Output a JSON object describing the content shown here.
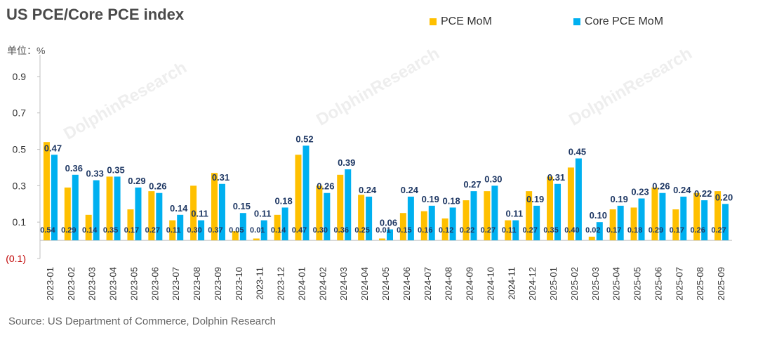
{
  "chart_data": {
    "type": "bar",
    "title": "US PCE/Core PCE index",
    "unit_label": "单位：%",
    "source": "Source: US Department of Commerce, Dolphin Research",
    "watermark": "DolphinResearch",
    "categories": [
      "2023-01",
      "2023-02",
      "2023-03",
      "2023-04",
      "2023-05",
      "2023-06",
      "2023-07",
      "2023-08",
      "2023-09",
      "2023-10",
      "2023-11",
      "2023-12",
      "2024-01",
      "2024-02",
      "2024-03",
      "2024-04",
      "2024-05",
      "2024-06",
      "2024-07",
      "2024-08",
      "2024-09",
      "2024-10",
      "2024-11",
      "2024-12",
      "2025-01",
      "2025-02",
      "2025-03",
      "2025-04",
      "2025-05",
      "2025-06",
      "2025-07",
      "2025-08",
      "2025-09"
    ],
    "series": [
      {
        "name": "PCE MoM",
        "color": "#FFC000",
        "values": [
          0.54,
          0.29,
          0.14,
          0.35,
          0.17,
          0.27,
          0.11,
          0.3,
          0.37,
          0.05,
          0.01,
          0.14,
          0.47,
          0.3,
          0.36,
          0.25,
          0.01,
          0.15,
          0.16,
          0.12,
          0.22,
          0.27,
          0.11,
          0.27,
          0.35,
          0.4,
          0.02,
          0.17,
          0.18,
          0.29,
          0.17,
          0.26,
          0.27
        ],
        "labels": [
          "0.54",
          "0.29",
          "0.14",
          "0.35",
          "0.17",
          "0.27",
          "0.11",
          "0.30",
          "0.37",
          "0.05",
          "0.01",
          "0.14",
          "0.47",
          "0.30",
          "0.36",
          "0.25",
          "0.01",
          "0.15",
          "0.16",
          "0.12",
          "0.22",
          "0.27",
          "0.11",
          "0.27",
          "0.35",
          "0.40",
          "0.02",
          "0.17",
          "0.18",
          "0.29",
          "0.17",
          "0.26",
          "0.27"
        ]
      },
      {
        "name": "Core PCE MoM",
        "color": "#00B0F0",
        "values": [
          0.47,
          0.36,
          0.33,
          0.35,
          0.29,
          0.26,
          0.14,
          0.11,
          0.31,
          0.15,
          0.11,
          0.18,
          0.52,
          0.26,
          0.39,
          0.24,
          0.06,
          0.24,
          0.19,
          0.18,
          0.27,
          0.3,
          0.11,
          0.19,
          0.31,
          0.45,
          0.1,
          0.19,
          0.23,
          0.26,
          0.24,
          0.22,
          0.2
        ],
        "labels": [
          "0.47",
          "0.36",
          "0.33",
          "0.35",
          "0.29",
          "0.26",
          "0.14",
          "0.11",
          "0.31",
          "0.15",
          "0.11",
          "0.18",
          "0.52",
          "0.26",
          "0.39",
          "0.24",
          "0.06",
          "0.24",
          "0.19",
          "0.18",
          "0.27",
          "0.30",
          "0.11",
          "0.19",
          "0.31",
          "0.45",
          "0.10",
          "0.19",
          "0.23",
          "0.26",
          "0.24",
          "0.22",
          "0.20"
        ]
      }
    ],
    "ylim": [
      -0.1,
      1.0
    ],
    "yticks": [
      {
        "value": 0.9,
        "label": "0.9"
      },
      {
        "value": 0.7,
        "label": "0.7"
      },
      {
        "value": 0.5,
        "label": "0.5"
      },
      {
        "value": 0.3,
        "label": "0.3"
      },
      {
        "value": 0.1,
        "label": "0.1"
      },
      {
        "value": -0.1,
        "label": "(0.1)"
      }
    ],
    "legend_position": "top-right",
    "grid": false
  },
  "colors": {
    "text_dark": "#1f3864",
    "negative_tick": "#c00000"
  }
}
